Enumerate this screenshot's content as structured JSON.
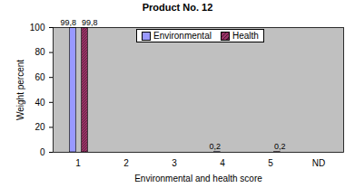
{
  "chart_data": {
    "type": "bar",
    "title": "Product No. 12",
    "xlabel": "Environmental and health score",
    "ylabel": "Weight percent",
    "categories": [
      "1",
      "2",
      "3",
      "4",
      "5",
      "ND"
    ],
    "series": [
      {
        "name": "Environmental",
        "color": "#9999ff",
        "values": [
          99.8,
          0,
          0,
          0.2,
          0,
          0
        ],
        "value_labels": [
          "99,8",
          null,
          null,
          "0,2",
          null,
          null
        ]
      },
      {
        "name": "Health",
        "color": "#993366",
        "values": [
          99.8,
          0,
          0,
          0,
          0.2,
          0
        ],
        "value_labels": [
          "99,8",
          null,
          null,
          null,
          "0,2",
          null
        ]
      }
    ],
    "ylim": [
      0,
      100
    ],
    "yticks": [
      0,
      20,
      40,
      60,
      80,
      100
    ],
    "grid": false,
    "legend": "top",
    "data_labels": true
  }
}
